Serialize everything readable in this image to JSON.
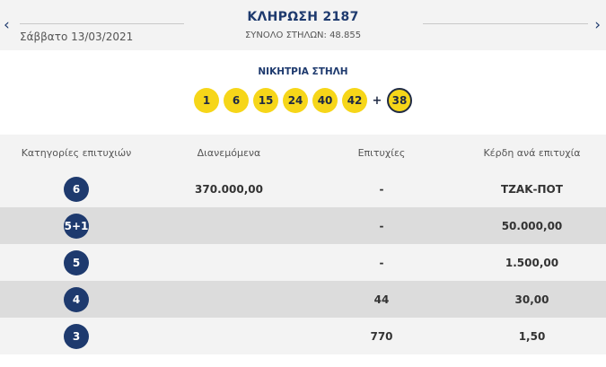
{
  "header": {
    "prev_icon": "chevron-left-icon",
    "next_icon": "chevron-right-icon",
    "prev_symbol": "‹",
    "next_symbol": "›",
    "date": "Σάββατο 13/03/2021",
    "draw_title": "ΚΛΗΡΩΣΗ 2187",
    "total_columns": "ΣΥΝΟΛΟ ΣΤΗΛΩΝ: 48.855"
  },
  "winning": {
    "label": "ΝΙΚΗΤΡΙΑ ΣΤΗΛΗ",
    "numbers": [
      "1",
      "6",
      "15",
      "24",
      "40",
      "42"
    ],
    "plus": "+",
    "bonus": "38"
  },
  "table": {
    "headers": [
      "Κατηγορίες επιτυχιών",
      "Διανεμόμενα",
      "Επιτυχίες",
      "Κέρδη ανά επιτυχία"
    ],
    "rows": [
      {
        "category": "6",
        "distributed": "370.000,00",
        "winners": "-",
        "prize": "ΤΖΑΚ-ΠΟΤ"
      },
      {
        "category": "5+1",
        "distributed": "",
        "winners": "-",
        "prize": "50.000,00"
      },
      {
        "category": "5",
        "distributed": "",
        "winners": "-",
        "prize": "1.500,00"
      },
      {
        "category": "4",
        "distributed": "",
        "winners": "44",
        "prize": "30,00"
      },
      {
        "category": "3",
        "distributed": "",
        "winners": "770",
        "prize": "1,50"
      }
    ]
  },
  "colors": {
    "navy": "#1e3a6e",
    "ball_yellow": "#f6d619",
    "row_light": "#f3f3f3",
    "row_dark": "#dcdcdc"
  }
}
